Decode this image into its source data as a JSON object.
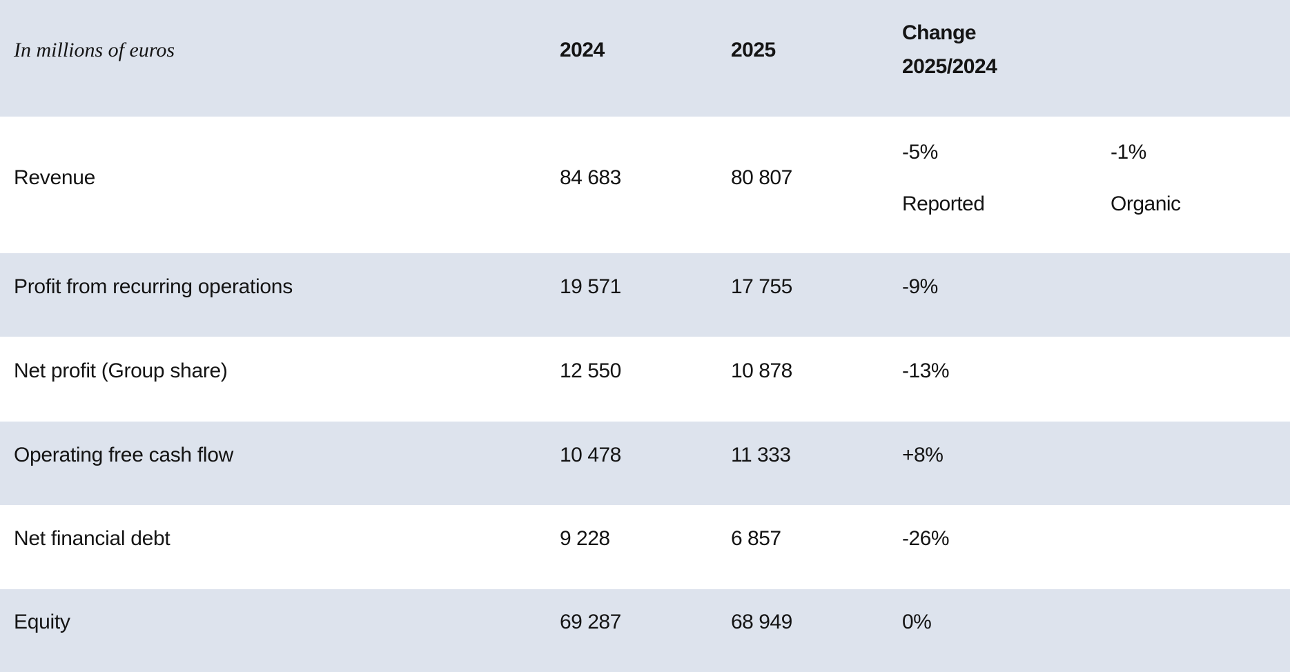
{
  "table": {
    "unit_label": "In millions of euros",
    "columns": {
      "y2024": "2024",
      "y2025": "2025",
      "change": "Change 2025/2024"
    },
    "rows": [
      {
        "label": "Revenue",
        "y2024": "84 683",
        "y2025": "80 807",
        "change_reported": "-5%",
        "change_reported_label": "Reported",
        "change_organic": "-1%",
        "change_organic_label": "Organic"
      },
      {
        "label": "Profit from recurring operations",
        "y2024": "19 571",
        "y2025": "17 755",
        "change": "-9%"
      },
      {
        "label": "Net profit (Group share)",
        "y2024": "12 550",
        "y2025": "10 878",
        "change": "-13%"
      },
      {
        "label": "Operating free cash flow",
        "y2024": "10 478",
        "y2025": "11 333",
        "change": "+8%"
      },
      {
        "label": "Net financial debt",
        "y2024": "9 228",
        "y2025": "6 857",
        "change": "-26%"
      },
      {
        "label": "Equity",
        "y2024": "69 287",
        "y2025": "68 949",
        "change": "0%"
      }
    ],
    "colors": {
      "band": "#dde3ed",
      "background": "#ffffff",
      "text": "#141414"
    }
  }
}
